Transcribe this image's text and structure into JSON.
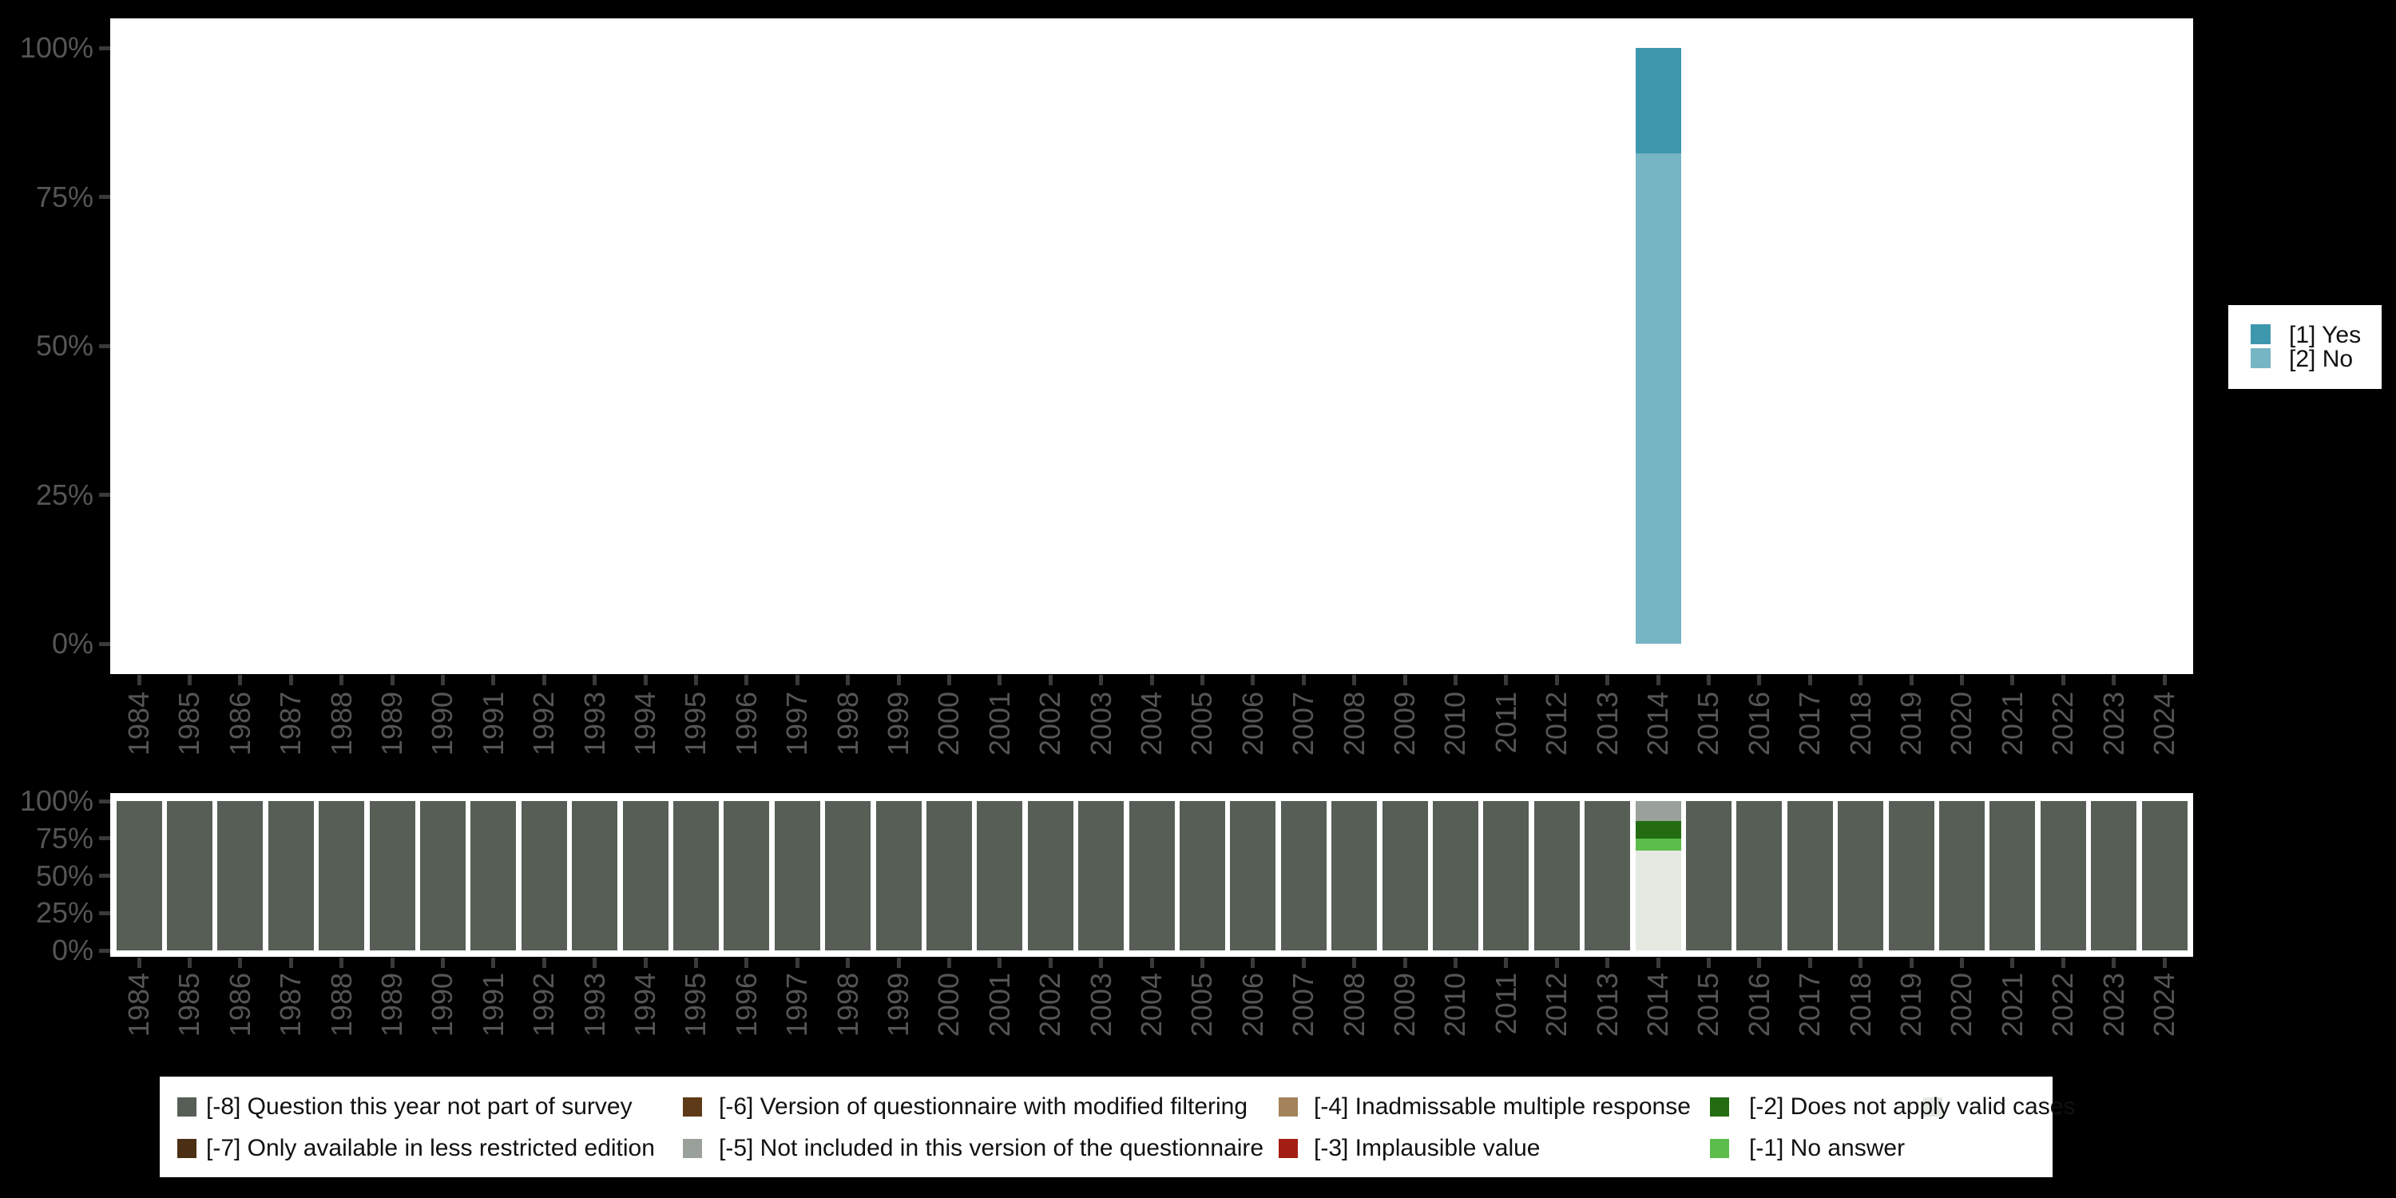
{
  "colors": {
    "background": "#000000",
    "panel_background": "#ffffff",
    "axis_label": "#555555",
    "tick_mark": "#3a3a3a",
    "legend_background": "#ffffff",
    "legend_text": "#111111"
  },
  "chart_data": [
    {
      "type": "bar",
      "stacked": true,
      "orientation": "vertical",
      "title": "",
      "xlabel": "",
      "ylabel": "",
      "ylim": [
        0,
        100
      ],
      "y_tick_labels": [
        "0%",
        "25%",
        "50%",
        "75%",
        "100%"
      ],
      "grid": false,
      "legend_position": "right",
      "categories": [
        "1984",
        "1985",
        "1986",
        "1987",
        "1988",
        "1989",
        "1990",
        "1991",
        "1992",
        "1993",
        "1994",
        "1995",
        "1996",
        "1997",
        "1998",
        "1999",
        "2000",
        "2001",
        "2002",
        "2003",
        "2004",
        "2005",
        "2006",
        "2007",
        "2008",
        "2009",
        "2010",
        "2011",
        "2012",
        "2013",
        "2014",
        "2015",
        "2016",
        "2017",
        "2018",
        "2019",
        "2020",
        "2021",
        "2022",
        "2023",
        "2024"
      ],
      "series": [
        {
          "name": "[1] Yes",
          "color": "#3d97ad",
          "values": [
            0,
            0,
            0,
            0,
            0,
            0,
            0,
            0,
            0,
            0,
            0,
            0,
            0,
            0,
            0,
            0,
            0,
            0,
            0,
            0,
            0,
            0,
            0,
            0,
            0,
            0,
            0,
            0,
            0,
            0,
            17.7,
            0,
            0,
            0,
            0,
            0,
            0,
            0,
            0,
            0,
            0
          ]
        },
        {
          "name": "[2] No",
          "color": "#76b5c4",
          "values": [
            0,
            0,
            0,
            0,
            0,
            0,
            0,
            0,
            0,
            0,
            0,
            0,
            0,
            0,
            0,
            0,
            0,
            0,
            0,
            0,
            0,
            0,
            0,
            0,
            0,
            0,
            0,
            0,
            0,
            0,
            82.3,
            0,
            0,
            0,
            0,
            0,
            0,
            0,
            0,
            0,
            0
          ]
        }
      ]
    },
    {
      "type": "bar",
      "stacked": true,
      "orientation": "vertical",
      "title": "",
      "xlabel": "",
      "ylabel": "",
      "ylim": [
        0,
        100
      ],
      "y_tick_labels": [
        "0%",
        "25%",
        "50%",
        "75%",
        "100%"
      ],
      "grid": false,
      "legend_position": "bottom",
      "categories": [
        "1984",
        "1985",
        "1986",
        "1987",
        "1988",
        "1989",
        "1990",
        "1991",
        "1992",
        "1993",
        "1994",
        "1995",
        "1996",
        "1997",
        "1998",
        "1999",
        "2000",
        "2001",
        "2002",
        "2003",
        "2004",
        "2005",
        "2006",
        "2007",
        "2008",
        "2009",
        "2010",
        "2011",
        "2012",
        "2013",
        "2014",
        "2015",
        "2016",
        "2017",
        "2018",
        "2019",
        "2020",
        "2021",
        "2022",
        "2023",
        "2024"
      ],
      "series": [
        {
          "name": "[-8] Question this year not part of survey",
          "color": "#565e56",
          "values": [
            100,
            100,
            100,
            100,
            100,
            100,
            100,
            100,
            100,
            100,
            100,
            100,
            100,
            100,
            100,
            100,
            100,
            100,
            100,
            100,
            100,
            100,
            100,
            100,
            100,
            100,
            100,
            100,
            100,
            100,
            0,
            100,
            100,
            100,
            100,
            100,
            100,
            100,
            100,
            100,
            100
          ]
        },
        {
          "name": "[-7] Only available in less restricted edition",
          "color": "#4b3015",
          "values": [
            0,
            0,
            0,
            0,
            0,
            0,
            0,
            0,
            0,
            0,
            0,
            0,
            0,
            0,
            0,
            0,
            0,
            0,
            0,
            0,
            0,
            0,
            0,
            0,
            0,
            0,
            0,
            0,
            0,
            0,
            0,
            0,
            0,
            0,
            0,
            0,
            0,
            0,
            0,
            0,
            0
          ]
        },
        {
          "name": "[-6] Version of questionnaire with modified filtering",
          "color": "#5e3a18",
          "values": [
            0,
            0,
            0,
            0,
            0,
            0,
            0,
            0,
            0,
            0,
            0,
            0,
            0,
            0,
            0,
            0,
            0,
            0,
            0,
            0,
            0,
            0,
            0,
            0,
            0,
            0,
            0,
            0,
            0,
            0,
            0,
            0,
            0,
            0,
            0,
            0,
            0,
            0,
            0,
            0,
            0
          ]
        },
        {
          "name": "[-5] Not included in this version of the questionnaire",
          "color": "#9aa09a",
          "values": [
            0,
            0,
            0,
            0,
            0,
            0,
            0,
            0,
            0,
            0,
            0,
            0,
            0,
            0,
            0,
            0,
            0,
            0,
            0,
            0,
            0,
            0,
            0,
            0,
            0,
            0,
            0,
            0,
            0,
            0,
            13.5,
            0,
            0,
            0,
            0,
            0,
            0,
            0,
            0,
            0,
            0
          ]
        },
        {
          "name": "[-4] Inadmissable multiple response",
          "color": "#a3835a",
          "values": [
            0,
            0,
            0,
            0,
            0,
            0,
            0,
            0,
            0,
            0,
            0,
            0,
            0,
            0,
            0,
            0,
            0,
            0,
            0,
            0,
            0,
            0,
            0,
            0,
            0,
            0,
            0,
            0,
            0,
            0,
            0,
            0,
            0,
            0,
            0,
            0,
            0,
            0,
            0,
            0,
            0
          ]
        },
        {
          "name": "[-3] Implausible value",
          "color": "#a41d14",
          "values": [
            0,
            0,
            0,
            0,
            0,
            0,
            0,
            0,
            0,
            0,
            0,
            0,
            0,
            0,
            0,
            0,
            0,
            0,
            0,
            0,
            0,
            0,
            0,
            0,
            0,
            0,
            0,
            0,
            0,
            0,
            0,
            0,
            0,
            0,
            0,
            0,
            0,
            0,
            0,
            0,
            0
          ]
        },
        {
          "name": "[-2] Does not apply",
          "color": "#236c12",
          "values": [
            0,
            0,
            0,
            0,
            0,
            0,
            0,
            0,
            0,
            0,
            0,
            0,
            0,
            0,
            0,
            0,
            0,
            0,
            0,
            0,
            0,
            0,
            0,
            0,
            0,
            0,
            0,
            0,
            0,
            0,
            11.8,
            0,
            0,
            0,
            0,
            0,
            0,
            0,
            0,
            0,
            0
          ]
        },
        {
          "name": "[-1] No answer",
          "color": "#5cbd4a",
          "values": [
            0,
            0,
            0,
            0,
            0,
            0,
            0,
            0,
            0,
            0,
            0,
            0,
            0,
            0,
            0,
            0,
            0,
            0,
            0,
            0,
            0,
            0,
            0,
            0,
            0,
            0,
            0,
            0,
            0,
            0,
            7.9,
            0,
            0,
            0,
            0,
            0,
            0,
            0,
            0,
            0,
            0
          ]
        },
        {
          "name": "valid cases",
          "color": "#e4e9e2",
          "values": [
            0,
            0,
            0,
            0,
            0,
            0,
            0,
            0,
            0,
            0,
            0,
            0,
            0,
            0,
            0,
            0,
            0,
            0,
            0,
            0,
            0,
            0,
            0,
            0,
            0,
            0,
            0,
            0,
            0,
            0,
            66.8,
            0,
            0,
            0,
            0,
            0,
            0,
            0,
            0,
            0,
            0
          ]
        }
      ]
    }
  ]
}
